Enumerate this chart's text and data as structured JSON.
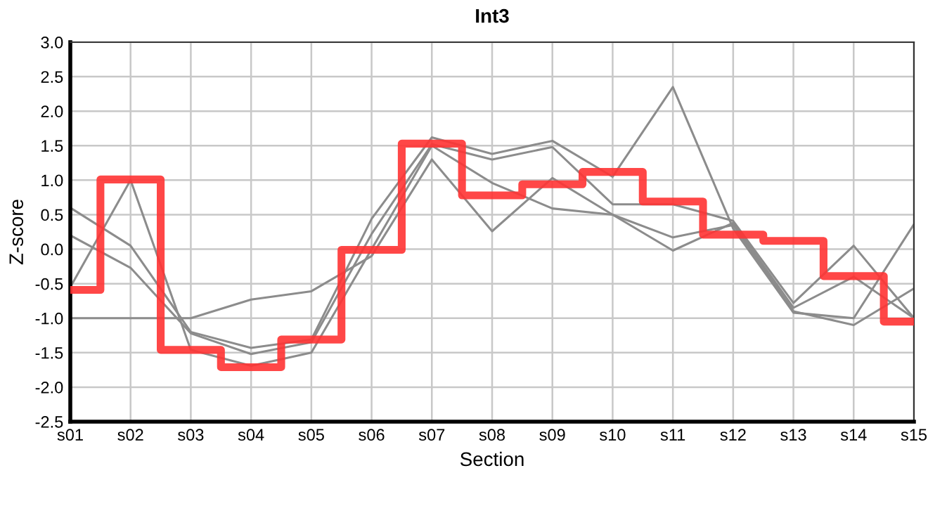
{
  "chart_data": {
    "type": "line",
    "title": "Int3",
    "xlabel": "Section",
    "ylabel": "Z-score",
    "categories": [
      "s01",
      "s02",
      "s03",
      "s04",
      "s05",
      "s06",
      "s07",
      "s08",
      "s09",
      "s10",
      "s11",
      "s12",
      "s13",
      "s14",
      "s15"
    ],
    "series": [
      {
        "color": "#8c8c8c",
        "values": [
          0.6,
          0.05,
          -1.2,
          -1.43,
          -1.31,
          0.44,
          1.62,
          1.38,
          1.57,
          1.05,
          2.35,
          0.3,
          -0.92,
          -1.0,
          0.36
        ]
      },
      {
        "color": "#8c8c8c",
        "values": [
          0.2,
          -0.27,
          -1.22,
          -1.52,
          -1.35,
          0.22,
          1.52,
          1.3,
          1.48,
          0.65,
          0.65,
          0.41,
          -0.78,
          0.05,
          -1.0
        ]
      },
      {
        "color": "#8c8c8c",
        "values": [
          -0.55,
          1.0,
          -1.46,
          -1.69,
          -1.5,
          0.0,
          1.5,
          0.96,
          0.59,
          0.5,
          0.17,
          0.35,
          -0.9,
          -1.1,
          -0.57
        ]
      },
      {
        "color": "#8c8c8c",
        "values": [
          -1.0,
          -1.0,
          -1.0,
          -0.73,
          -0.61,
          -0.1,
          1.3,
          0.26,
          1.03,
          0.5,
          -0.02,
          0.38,
          -0.85,
          -0.4,
          -1.0
        ]
      },
      {
        "type": "step",
        "color": "#ff3333",
        "values": [
          -0.59,
          1.01,
          -1.46,
          -1.71,
          -1.31,
          -0.01,
          1.53,
          0.78,
          0.94,
          1.12,
          0.69,
          0.21,
          0.12,
          -0.39,
          -1.05
        ]
      }
    ],
    "ylim": [
      -2.5,
      3.0
    ],
    "yticks": [
      {
        "value": -2.5,
        "label": "-2.5"
      },
      {
        "value": -2,
        "label": "-2.0"
      },
      {
        "value": -1.5,
        "label": "-1.5"
      },
      {
        "value": -1,
        "label": "-1.0"
      },
      {
        "value": -0.5,
        "label": "-0.5"
      },
      {
        "value": 0,
        "label": "0.0"
      },
      {
        "value": 0.5,
        "label": "0.5"
      },
      {
        "value": 1,
        "label": "1.0"
      },
      {
        "value": 1.5,
        "label": "1.5"
      },
      {
        "value": 2,
        "label": "2.0"
      },
      {
        "value": 2.5,
        "label": "2.5"
      },
      {
        "value": 3,
        "label": "3.0"
      }
    ],
    "grid": true
  }
}
